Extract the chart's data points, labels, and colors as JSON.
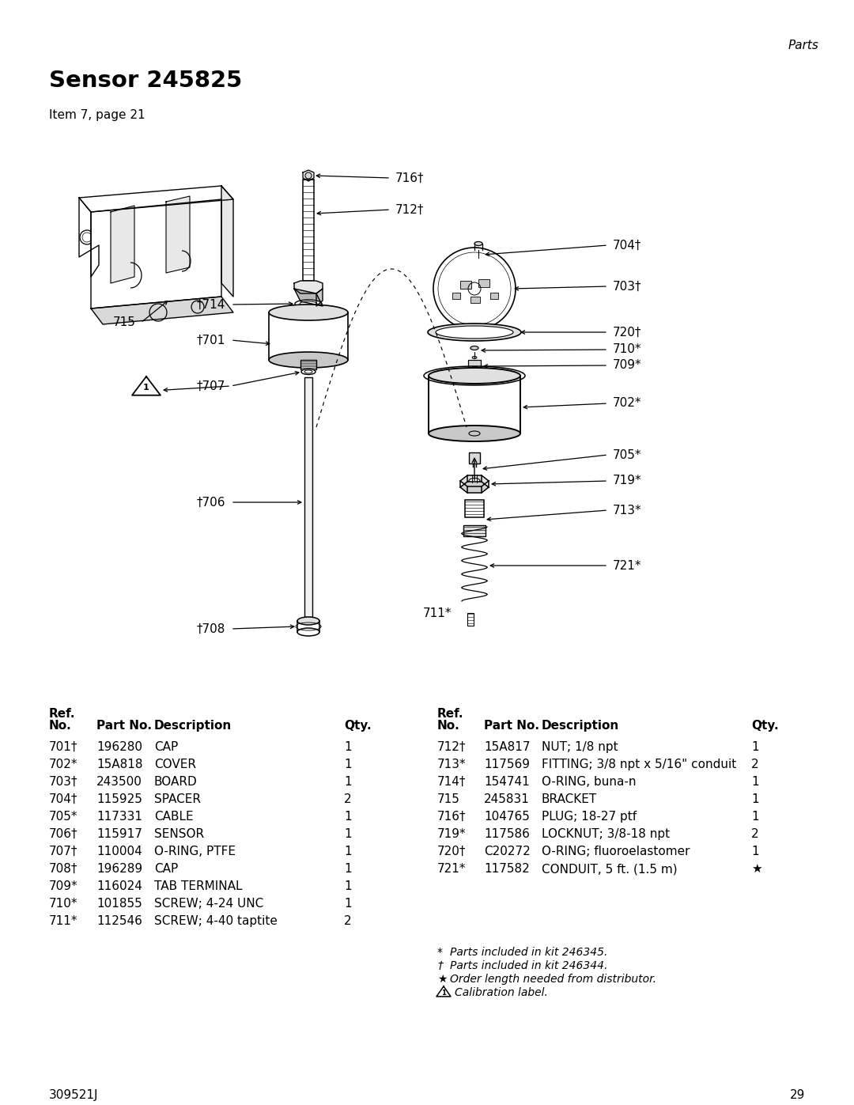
{
  "header_right": "Parts",
  "title": "Sensor 245825",
  "subtitle": "Item 7, page 21",
  "doc_number": "309521J",
  "page_number": "29",
  "left_table_rows": [
    [
      "701†",
      "196280",
      "CAP",
      "1"
    ],
    [
      "702*",
      "15A818",
      "COVER",
      "1"
    ],
    [
      "703†",
      "243500",
      "BOARD",
      "1"
    ],
    [
      "704†",
      "115925",
      "SPACER",
      "2"
    ],
    [
      "705*",
      "117331",
      "CABLE",
      "1"
    ],
    [
      "706†",
      "115917",
      "SENSOR",
      "1"
    ],
    [
      "707†",
      "110004",
      "O-RING, PTFE",
      "1"
    ],
    [
      "708†",
      "196289",
      "CAP",
      "1"
    ],
    [
      "709*",
      "116024",
      "TAB TERMINAL",
      "1"
    ],
    [
      "710*",
      "101855",
      "SCREW; 4-24 UNC",
      "1"
    ],
    [
      "711*",
      "112546",
      "SCREW; 4-40 taptite",
      "2"
    ]
  ],
  "right_table_rows": [
    [
      "712†",
      "15A817",
      "NUT; 1/8 npt",
      "1"
    ],
    [
      "713*",
      "117569",
      "FITTING; 3/8 npt x 5/16\" conduit",
      "2"
    ],
    [
      "714†",
      "154741",
      "O-RING, buna-n",
      "1"
    ],
    [
      "715",
      "245831",
      "BRACKET",
      "1"
    ],
    [
      "716†",
      "104765",
      "PLUG; 18-27 ptf",
      "1"
    ],
    [
      "719*",
      "117586",
      "LOCKNUT; 3/8-18 npt",
      "2"
    ],
    [
      "720†",
      "C20272",
      "O-RING; fluoroelastomer",
      "1"
    ],
    [
      "721*",
      "117582",
      "CONDUIT, 5 ft. (1.5 m)",
      "★"
    ]
  ],
  "footnotes_syms": [
    "*",
    "†",
    "★"
  ],
  "footnotes_txts": [
    "Parts included in kit 246345.",
    "Parts included in kit 246344.",
    "Order length needed from distributor."
  ],
  "footnote_calib": "Calibration label.",
  "bg_color": "#ffffff"
}
